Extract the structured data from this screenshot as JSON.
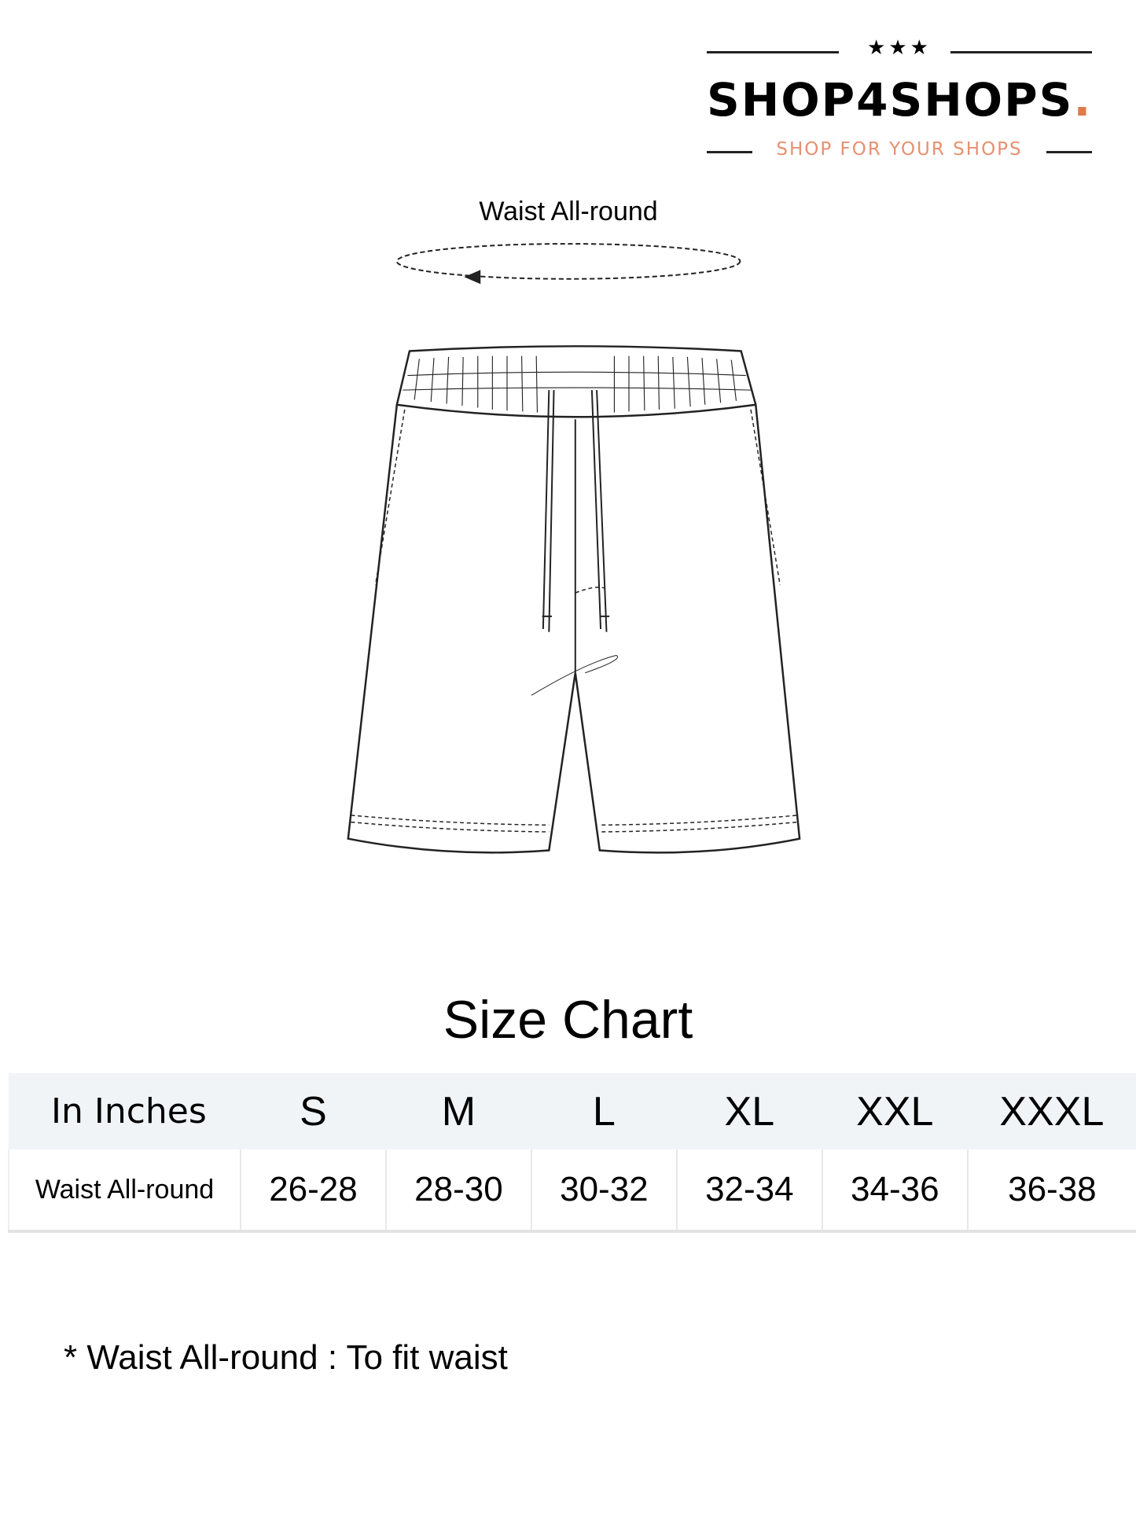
{
  "logo": {
    "stars": "★★★",
    "brand": "SHOP4SHOPS",
    "brand_dot": ".",
    "tagline": "SHOP FOR YOUR SHOPS",
    "accent": "#e07a4a"
  },
  "diagram": {
    "measure_label": "Waist All-round",
    "icon": "shorts-sketch"
  },
  "size_chart": {
    "title": "Size Chart",
    "header": [
      "In Inches",
      "S",
      "M",
      "L",
      "XL",
      "XXL",
      "XXXL"
    ],
    "rows": [
      [
        "Waist All-round",
        "26-28",
        "28-30",
        "30-32",
        "32-34",
        "34-36",
        "36-38"
      ]
    ]
  },
  "note": "* Waist All-round : To fit waist"
}
